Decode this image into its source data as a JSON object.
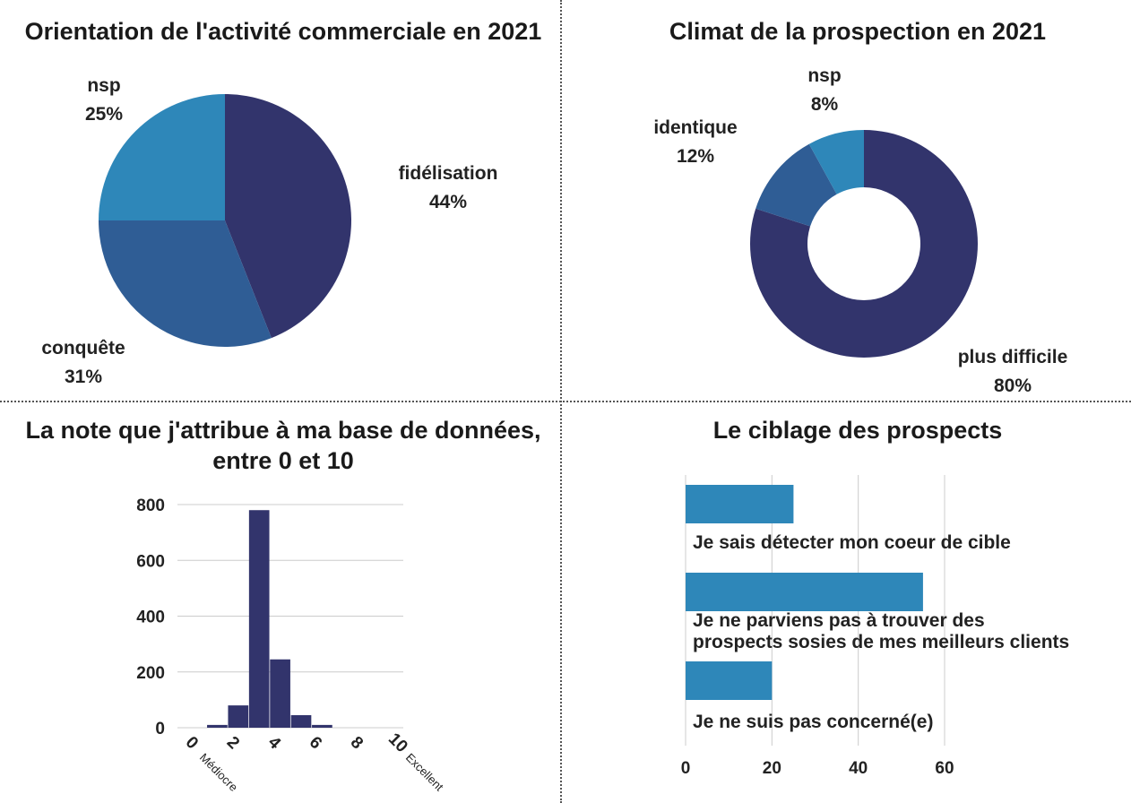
{
  "chart_data": [
    {
      "type": "pie",
      "title": "Orientation de l'activité commerciale en 2021",
      "slices": [
        {
          "label": "fidélisation",
          "value": 44,
          "display": "44%",
          "color": "#32346c"
        },
        {
          "label": "conquête",
          "value": 31,
          "display": "31%",
          "color": "#2f5d95"
        },
        {
          "label": "nsp",
          "value": 25,
          "display": "25%",
          "color": "#2e87b9"
        }
      ]
    },
    {
      "type": "pie",
      "donut": true,
      "title": "Climat de la prospection en 2021",
      "slices": [
        {
          "label": "plus difficile",
          "value": 80,
          "display": "80%",
          "color": "#32346c"
        },
        {
          "label": "identique",
          "value": 12,
          "display": "12%",
          "color": "#2f5d95"
        },
        {
          "label": "nsp",
          "value": 8,
          "display": "8%",
          "color": "#2e87b9"
        }
      ]
    },
    {
      "type": "bar",
      "title": "La note que j'attribue à ma base de données, entre 0 et 10",
      "title_lines": [
        "La note que j'attribue à ma base de données,",
        "entre 0 et 10"
      ],
      "x": [
        0,
        1,
        2,
        3,
        4,
        5,
        6,
        7,
        8,
        9,
        10
      ],
      "values": [
        0,
        10,
        80,
        780,
        245,
        45,
        10,
        0,
        0,
        0,
        0
      ],
      "xticks": [
        "0",
        "2",
        "4",
        "6",
        "8",
        "10"
      ],
      "xtick_notes": {
        "0": "Médiocre",
        "10": "Excellent"
      },
      "yticks": [
        "0",
        "200",
        "400",
        "600",
        "800"
      ],
      "ylim": [
        0,
        800
      ],
      "color": "#32346c",
      "grid": true
    },
    {
      "type": "bar",
      "orientation": "horizontal",
      "title": "Le ciblage des prospects",
      "categories": [
        [
          "Je sais détecter mon coeur de cible"
        ],
        [
          "Je ne parviens pas à trouver des",
          "prospects sosies de mes meilleurs clients"
        ],
        [
          "Je ne suis pas concerné(e)"
        ]
      ],
      "values": [
        25,
        55,
        20
      ],
      "xticks": [
        "0",
        "20",
        "40",
        "60"
      ],
      "xlim": [
        0,
        60
      ],
      "color": "#2e87b9",
      "grid": true
    }
  ]
}
